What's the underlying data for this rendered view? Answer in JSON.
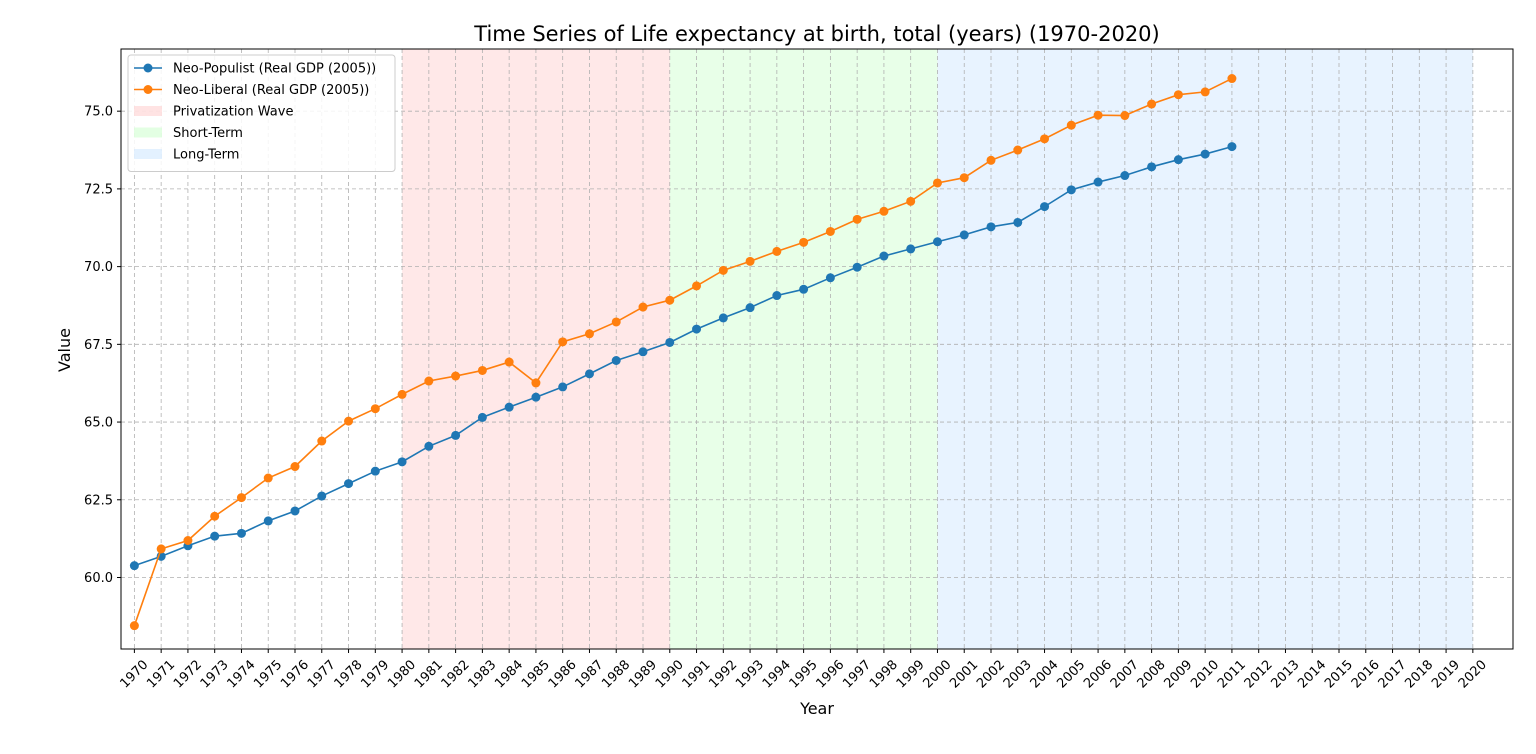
{
  "chart_data": {
    "type": "line",
    "title": "Time Series of Life expectancy at birth, total (years) (1970-2020)",
    "xlabel": "Year",
    "ylabel": "Value",
    "x": [
      1970,
      1971,
      1972,
      1973,
      1974,
      1975,
      1976,
      1977,
      1978,
      1979,
      1980,
      1981,
      1982,
      1983,
      1984,
      1985,
      1986,
      1987,
      1988,
      1989,
      1990,
      1991,
      1992,
      1993,
      1994,
      1995,
      1996,
      1997,
      1998,
      1999,
      2000,
      2001,
      2002,
      2003,
      2004,
      2005,
      2006,
      2007,
      2008,
      2009,
      2010,
      2011,
      2012,
      2013,
      2014,
      2015,
      2016,
      2017,
      2018,
      2019,
      2020
    ],
    "xlim": [
      1969.5,
      2021.5
    ],
    "ylim": [
      57.7,
      77.0
    ],
    "yticks": [
      60.0,
      62.5,
      65.0,
      67.5,
      70.0,
      72.5,
      75.0
    ],
    "ytick_labels": [
      "60.0",
      "62.5",
      "65.0",
      "67.5",
      "70.0",
      "72.5",
      "75.0"
    ],
    "grid": true,
    "legend_position": "top-left",
    "series": [
      {
        "name": "Neo-Populist (Real GDP (2005))",
        "color": "#1f77b4",
        "marker": "circle",
        "x": [
          1970,
          1971,
          1972,
          1973,
          1974,
          1975,
          1976,
          1977,
          1978,
          1979,
          1980,
          1981,
          1982,
          1983,
          1984,
          1985,
          1986,
          1987,
          1988,
          1989,
          1990,
          1991,
          1992,
          1993,
          1994,
          1995,
          1996,
          1997,
          1998,
          1999,
          2000,
          2001,
          2002,
          2003,
          2004,
          2005,
          2006,
          2007,
          2008,
          2009,
          2010,
          2011
        ],
        "values": [
          60.38,
          60.68,
          61.02,
          61.33,
          61.42,
          61.82,
          62.14,
          62.62,
          63.02,
          63.42,
          63.72,
          64.22,
          64.57,
          65.15,
          65.48,
          65.8,
          66.13,
          66.55,
          66.98,
          67.26,
          67.56,
          67.99,
          68.35,
          68.68,
          69.07,
          69.27,
          69.64,
          69.98,
          70.34,
          70.57,
          70.8,
          71.02,
          71.28,
          71.42,
          71.93,
          72.47,
          72.72,
          72.93,
          73.21,
          73.44,
          73.62,
          73.86
        ]
      },
      {
        "name": "Neo-Liberal (Real GDP (2005))",
        "color": "#ff7f0e",
        "marker": "circle",
        "x": [
          1970,
          1971,
          1972,
          1973,
          1974,
          1975,
          1976,
          1977,
          1978,
          1979,
          1980,
          1981,
          1982,
          1983,
          1984,
          1985,
          1986,
          1987,
          1988,
          1989,
          1990,
          1991,
          1992,
          1993,
          1994,
          1995,
          1996,
          1997,
          1998,
          1999,
          2000,
          2001,
          2002,
          2003,
          2004,
          2005,
          2006,
          2007,
          2008,
          2009,
          2010,
          2011
        ],
        "values": [
          58.45,
          60.92,
          61.19,
          61.97,
          62.57,
          63.2,
          63.57,
          64.39,
          65.03,
          65.43,
          65.89,
          66.32,
          66.48,
          66.66,
          66.93,
          66.26,
          67.58,
          67.84,
          68.22,
          68.7,
          68.92,
          69.38,
          69.88,
          70.17,
          70.49,
          70.78,
          71.13,
          71.52,
          71.78,
          72.1,
          72.69,
          72.86,
          73.42,
          73.75,
          74.11,
          74.55,
          74.87,
          74.86,
          75.23,
          75.53,
          75.62,
          76.05
        ]
      }
    ],
    "periods": [
      {
        "name": "Privatization Wave",
        "start": 1980,
        "end": 1990,
        "color": "#ffcccc"
      },
      {
        "name": "Short-Term",
        "start": 1990,
        "end": 2000,
        "color": "#ccffcc"
      },
      {
        "name": "Long-Term",
        "start": 2000,
        "end": 2020,
        "color": "#cce5ff"
      }
    ]
  }
}
